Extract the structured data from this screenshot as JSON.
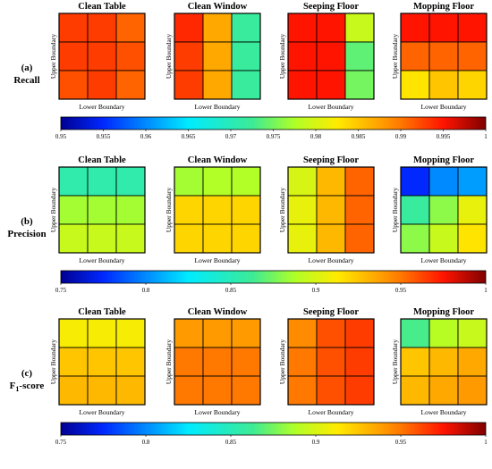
{
  "chart_data": [
    {
      "type": "heatmap",
      "row_label": "(a)",
      "row_title": "Recall",
      "colorbar": {
        "range": [
          0.95,
          1
        ],
        "ticks": [
          "0.95",
          "0.955",
          "0.96",
          "0.965",
          "0.97",
          "0.975",
          "0.98",
          "0.985",
          "0.99",
          "0.995",
          "1"
        ]
      },
      "panels": [
        {
          "title": "Clean Table",
          "xlabel": "Lower Boundary",
          "ylabel": "Upper Boundary",
          "values": [
            [
              0.993,
              0.993,
              0.991
            ],
            [
              0.993,
              0.993,
              0.992
            ],
            [
              0.992,
              0.993,
              0.991
            ]
          ]
        },
        {
          "title": "Clean Window",
          "xlabel": "Lower Boundary",
          "ylabel": "Upper Boundary",
          "values": [
            [
              0.994,
              0.987,
              0.972
            ],
            [
              0.993,
              0.987,
              0.972
            ],
            [
              0.993,
              0.987,
              0.972
            ]
          ]
        },
        {
          "title": "Seeping Floor",
          "xlabel": "Lower Boundary",
          "ylabel": "Upper Boundary",
          "values": [
            [
              0.995,
              0.995,
              0.979
            ],
            [
              0.995,
              0.995,
              0.974
            ],
            [
              0.995,
              0.995,
              0.975
            ]
          ]
        },
        {
          "title": "Mopping Floor",
          "xlabel": "Lower Boundary",
          "ylabel": "Upper Boundary",
          "values": [
            [
              0.995,
              0.995,
              0.995
            ],
            [
              0.991,
              0.991,
              0.991
            ],
            [
              0.983,
              0.985,
              0.984
            ]
          ]
        }
      ]
    },
    {
      "type": "heatmap",
      "row_label": "(b)",
      "row_title": "Precision",
      "colorbar": {
        "range": [
          0.75,
          1
        ],
        "ticks": [
          "0.75",
          "0.8",
          "0.85",
          "0.9",
          "0.95",
          "1"
        ]
      },
      "panels": [
        {
          "title": "Clean Table",
          "xlabel": "Lower Boundary",
          "ylabel": "Upper Boundary",
          "values": [
            [
              0.855,
              0.855,
              0.855
            ],
            [
              0.885,
              0.885,
              0.885
            ],
            [
              0.895,
              0.895,
              0.895
            ]
          ]
        },
        {
          "title": "Clean Window",
          "xlabel": "Lower Boundary",
          "ylabel": "Upper Boundary",
          "values": [
            [
              0.885,
              0.888,
              0.888
            ],
            [
              0.92,
              0.92,
              0.92
            ],
            [
              0.92,
              0.92,
              0.92
            ]
          ]
        },
        {
          "title": "Seeping Floor",
          "xlabel": "Lower Boundary",
          "ylabel": "Upper Boundary",
          "values": [
            [
              0.9,
              0.93,
              0.955
            ],
            [
              0.905,
              0.93,
              0.955
            ],
            [
              0.905,
              0.93,
              0.955
            ]
          ]
        },
        {
          "title": "Mopping Floor",
          "xlabel": "Lower Boundary",
          "ylabel": "Upper Boundary",
          "values": [
            [
              0.775,
              0.8,
              0.805
            ],
            [
              0.86,
              0.88,
              0.905
            ],
            [
              0.88,
              0.895,
              0.915
            ]
          ]
        }
      ]
    },
    {
      "type": "heatmap",
      "row_label": "(c)",
      "row_title": "F",
      "row_title_sub": "1",
      "row_title_suffix": "-score",
      "colorbar": {
        "range": [
          0.75,
          1
        ],
        "ticks": [
          "0.75",
          "0.8",
          "0.85",
          "0.9",
          "0.95",
          "1"
        ]
      },
      "panels": [
        {
          "title": "Clean Table",
          "xlabel": "Lower Boundary",
          "ylabel": "Upper Boundary",
          "values": [
            [
              0.91,
              0.91,
              0.91
            ],
            [
              0.925,
              0.925,
              0.925
            ],
            [
              0.93,
              0.93,
              0.93
            ]
          ]
        },
        {
          "title": "Clean Window",
          "xlabel": "Lower Boundary",
          "ylabel": "Upper Boundary",
          "values": [
            [
              0.94,
              0.94,
              0.94
            ],
            [
              0.95,
              0.95,
              0.95
            ],
            [
              0.95,
              0.95,
              0.95
            ]
          ]
        },
        {
          "title": "Seeping Floor",
          "xlabel": "Lower Boundary",
          "ylabel": "Upper Boundary",
          "values": [
            [
              0.945,
              0.96,
              0.965
            ],
            [
              0.95,
              0.96,
              0.965
            ],
            [
              0.95,
              0.96,
              0.965
            ]
          ]
        },
        {
          "title": "Mopping Floor",
          "xlabel": "Lower Boundary",
          "ylabel": "Upper Boundary",
          "values": [
            [
              0.865,
              0.89,
              0.895
            ],
            [
              0.925,
              0.93,
              0.935
            ],
            [
              0.93,
              0.935,
              0.94
            ]
          ]
        }
      ]
    }
  ]
}
